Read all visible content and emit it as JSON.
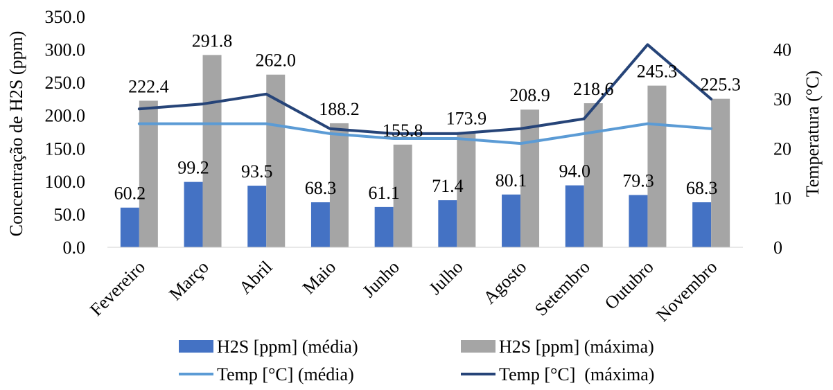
{
  "chart_data": {
    "type": "bar",
    "categories": [
      "Fevereiro",
      "Março",
      "Abril",
      "Maio",
      "Junho",
      "Julho",
      "Agosto",
      "Setembro",
      "Outubro",
      "Novembro"
    ],
    "series": [
      {
        "name": "H2S [ppm] (média)",
        "type": "bar",
        "axis": "left",
        "color": "#4472C4",
        "values": [
          60.2,
          99.2,
          93.5,
          68.3,
          61.1,
          71.4,
          80.1,
          94.0,
          79.3,
          68.3
        ],
        "labels": [
          "60.2",
          "99.2",
          "93.5",
          "68.3",
          "61.1",
          "71.4",
          "80.1",
          "94.0",
          "79.3",
          "68.3"
        ]
      },
      {
        "name": "H2S [ppm] (máxima)",
        "type": "bar",
        "axis": "left",
        "color": "#A5A5A5",
        "values": [
          222.4,
          291.8,
          262.0,
          188.2,
          155.8,
          173.9,
          208.9,
          218.6,
          245.3,
          225.3
        ],
        "labels": [
          "222.4",
          "291.8",
          "262.0",
          "188.2",
          "155.8",
          "173.9",
          "208.9",
          "218.6",
          "245.3",
          "225.3"
        ]
      },
      {
        "name": "Temp [°C] (média)",
        "type": "line",
        "axis": "right",
        "color": "#5B9BD5",
        "values": [
          25,
          25,
          25,
          23,
          22,
          22,
          21,
          23,
          25,
          24
        ]
      },
      {
        "name": "Temp [°C]  (máxima)",
        "type": "line",
        "axis": "right",
        "color": "#264478",
        "values": [
          28,
          29,
          31,
          24,
          23,
          23,
          24,
          26,
          41,
          30
        ]
      }
    ],
    "ylabel": "Concentração de H2S (ppm)",
    "y2label": "Temperatura (°C)",
    "ylim": [
      0,
      350
    ],
    "y2lim": [
      0,
      46.67
    ],
    "yticks": [
      "0.0",
      "50.0",
      "100.0",
      "150.0",
      "200.0",
      "250.0",
      "300.0",
      "350.0"
    ],
    "y2ticks": [
      "0",
      "10",
      "20",
      "30",
      "40"
    ],
    "grid": false,
    "legend_position": "bottom"
  }
}
